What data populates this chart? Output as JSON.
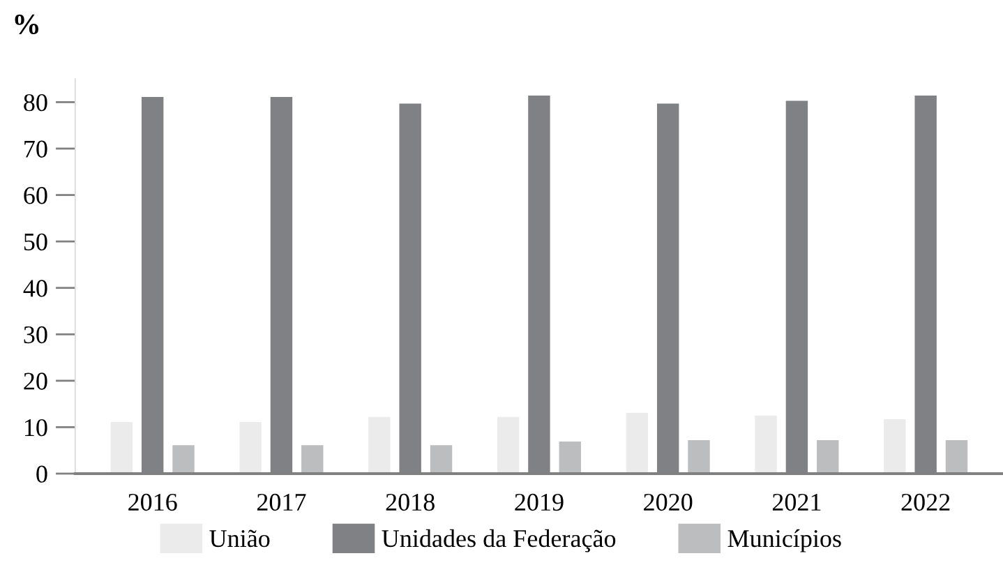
{
  "chart_data": {
    "type": "bar",
    "ylabel": "%",
    "categories": [
      "2016",
      "2017",
      "2018",
      "2019",
      "2020",
      "2021",
      "2022"
    ],
    "series": [
      {
        "name": "União",
        "color": "#ebebeb",
        "values": [
          11.1,
          11.1,
          12.2,
          12.2,
          13.1,
          12.5,
          11.7
        ]
      },
      {
        "name": "Unidades da Federação",
        "color": "#808184",
        "values": [
          81.1,
          81.1,
          79.7,
          81.4,
          79.7,
          80.3,
          81.4
        ]
      },
      {
        "name": "Municípios",
        "color": "#bcbdbf",
        "values": [
          6.1,
          6.1,
          6.1,
          6.9,
          7.2,
          7.2,
          7.2
        ]
      }
    ],
    "ylim": [
      0,
      85
    ],
    "yticks": [
      0,
      10,
      20,
      30,
      40,
      50,
      60,
      70,
      80
    ],
    "grid": false,
    "legend": "bottom"
  }
}
